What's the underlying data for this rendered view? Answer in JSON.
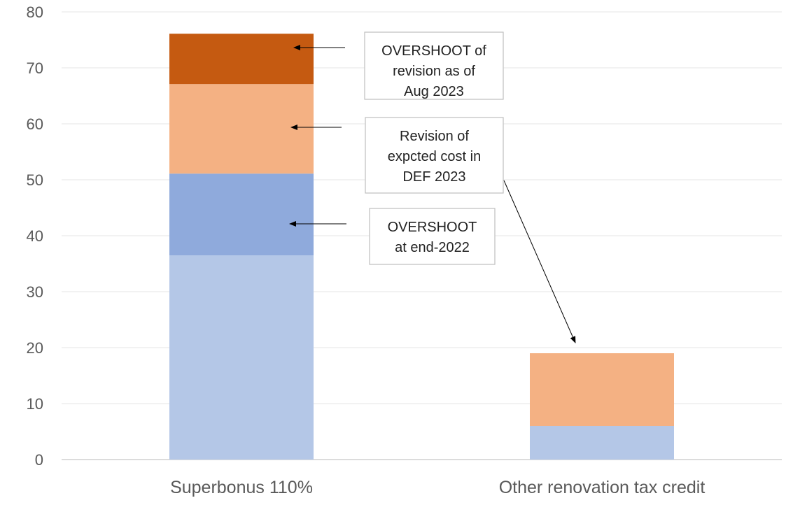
{
  "chart_data": {
    "type": "bar",
    "stacked": true,
    "title": "",
    "xlabel": "",
    "ylabel": "",
    "ylim": [
      0,
      80
    ],
    "yticks": [
      0,
      10,
      20,
      30,
      40,
      50,
      60,
      70,
      80
    ],
    "grid": true,
    "legend": "none",
    "categories": [
      "Superbonus 110%",
      "Other renovation tax credit"
    ],
    "series": [
      {
        "values": [
          36.5,
          6.0
        ],
        "color": "#b4c7e7"
      },
      {
        "values": [
          14.6,
          0
        ],
        "color": "#8faadc"
      },
      {
        "values": [
          16.0,
          13.0
        ],
        "color": "#f4b183"
      },
      {
        "values": [
          9.0,
          0
        ],
        "color": "#c55a11"
      }
    ],
    "annotations": [
      {
        "lines": [
          "OVERSHOOT of",
          "revision as of",
          "Aug 2023"
        ]
      },
      {
        "lines": [
          "Revision of",
          "expcted cost in",
          "DEF 2023"
        ]
      },
      {
        "lines": [
          "OVERSHOOT",
          "at end-2022"
        ]
      }
    ]
  }
}
